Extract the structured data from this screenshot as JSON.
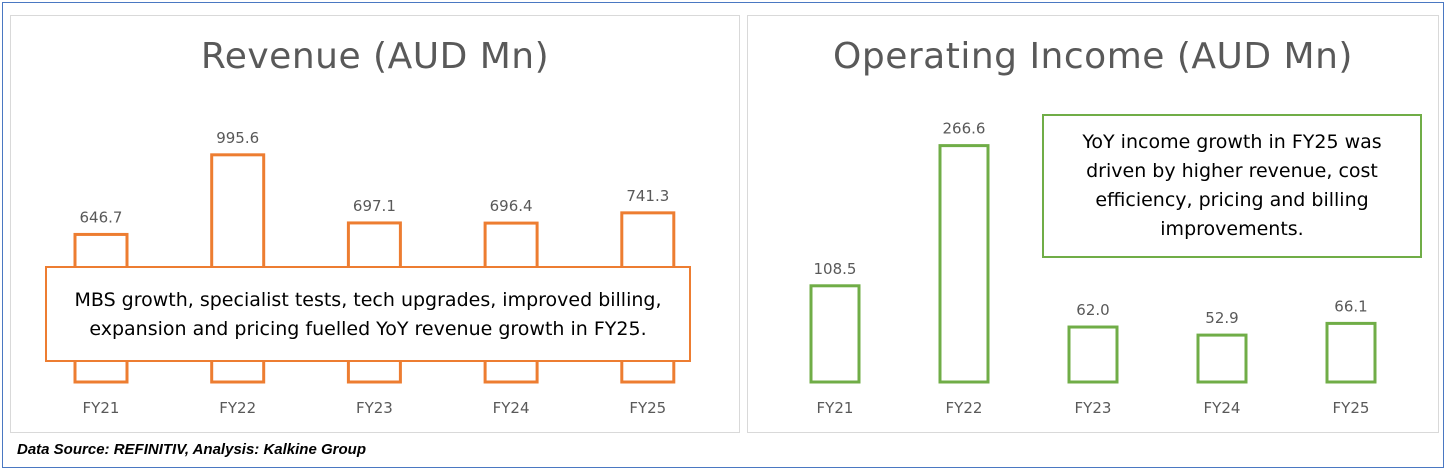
{
  "chart_data": [
    {
      "type": "bar",
      "title": "Revenue (AUD Mn)",
      "categories": [
        "FY21",
        "FY22",
        "FY23",
        "FY24",
        "FY25"
      ],
      "values": [
        646.7,
        995.6,
        697.1,
        696.4,
        741.3
      ],
      "data_labels": [
        "646.7",
        "995.6",
        "697.1",
        "696.4",
        "741.3"
      ],
      "ylim": [
        0,
        1100
      ],
      "grid": false,
      "bar_style": "outline",
      "color": "#ed7d31",
      "annotation": {
        "line1": "MBS growth, specialist tests, tech upgrades, improved billing,",
        "line2": "expansion and pricing fuelled YoY revenue growth in FY25."
      }
    },
    {
      "type": "bar",
      "title": "Operating Income (AUD Mn)",
      "categories": [
        "FY21",
        "FY22",
        "FY23",
        "FY24",
        "FY25"
      ],
      "values": [
        108.5,
        266.6,
        62.0,
        52.9,
        66.1
      ],
      "data_labels": [
        "108.5",
        "266.6",
        "62.0",
        "52.9",
        "66.1"
      ],
      "ylim": [
        0,
        300
      ],
      "grid": false,
      "bar_style": "outline",
      "color": "#70ad47",
      "annotation": {
        "line1": "YoY income growth in FY25 was",
        "line2": "driven by higher revenue, cost",
        "line3": "efficiency, pricing and billing",
        "line4": "improvements."
      }
    }
  ],
  "footer": {
    "source": "Data Source: REFINITIV, Analysis: Kalkine Group"
  }
}
